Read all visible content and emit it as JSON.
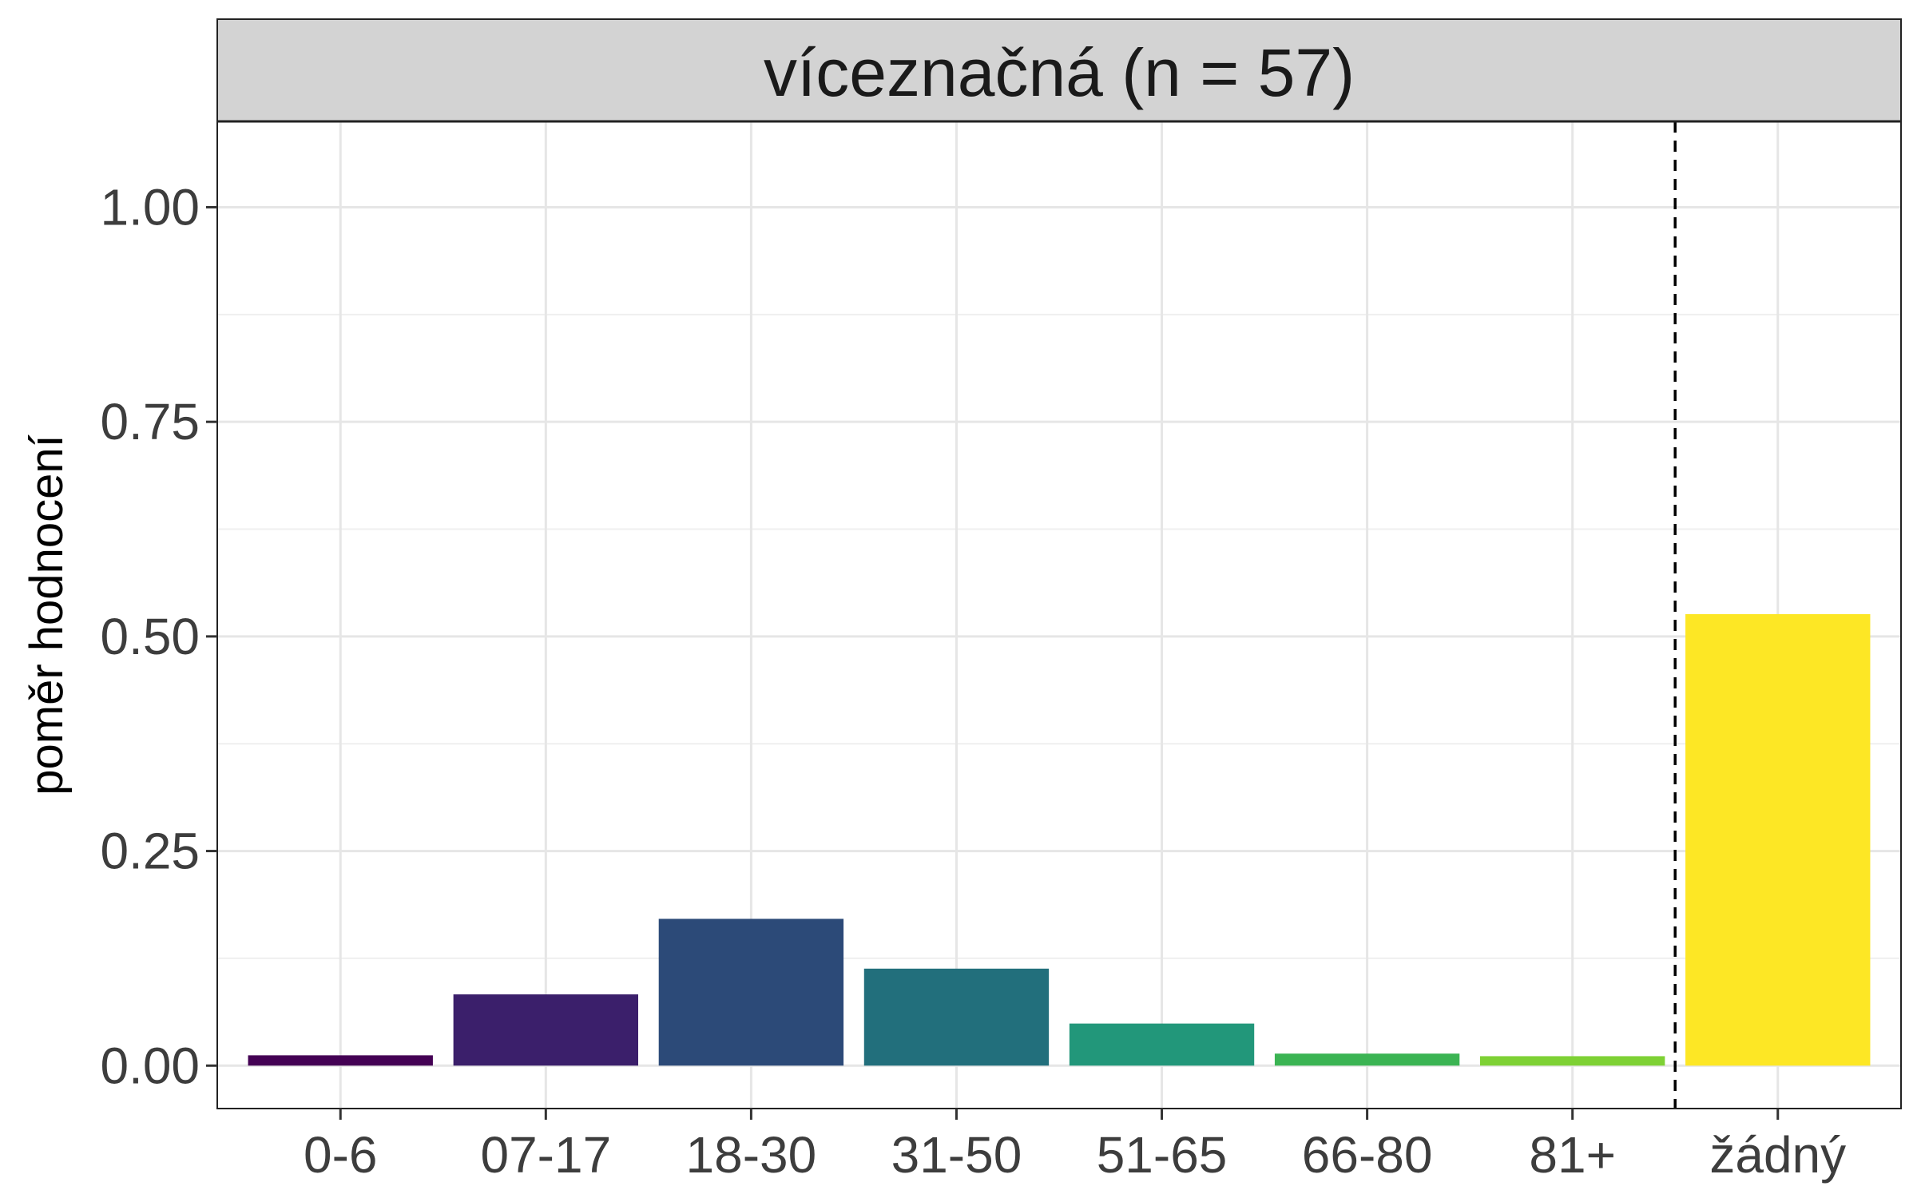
{
  "chart_data": {
    "type": "bar",
    "facet_title": "víceznačná (n = 57)",
    "xlabel": "",
    "ylabel": "poměr hodnocení",
    "ylim": [
      -0.05,
      1.1
    ],
    "y_ticks": [
      0.0,
      0.25,
      0.5,
      0.75,
      1.0
    ],
    "y_tick_labels": [
      "0.00",
      "0.25",
      "0.50",
      "0.75",
      "1.00"
    ],
    "grid": true,
    "separator_line": {
      "style": "dashed",
      "between": [
        "81+",
        "žádný"
      ]
    },
    "categories": [
      "0-6",
      "07-17",
      "18-30",
      "31-50",
      "51-65",
      "66-80",
      "81+",
      "žádný"
    ],
    "values": [
      0.012,
      0.083,
      0.171,
      0.113,
      0.049,
      0.014,
      0.011,
      0.526
    ],
    "colors": [
      "#440154",
      "#3B1F6B",
      "#2C4A78",
      "#226F7C",
      "#22977A",
      "#3BB453",
      "#7ED134",
      "#FDE725"
    ]
  }
}
